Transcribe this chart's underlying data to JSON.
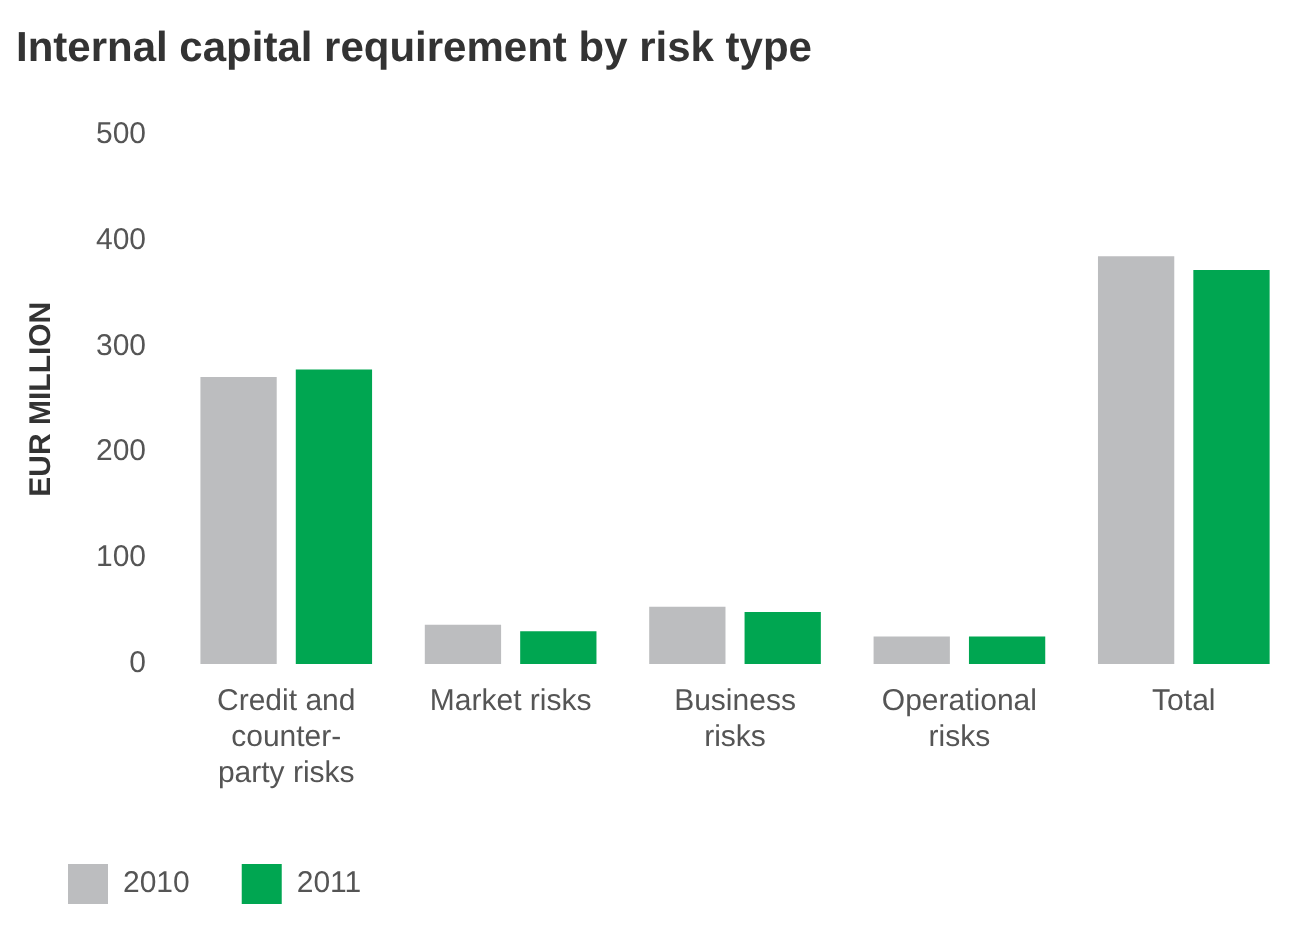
{
  "chart_data": {
    "type": "bar",
    "title": "Internal capital requirement by risk type",
    "ylabel": "EUR MILLION",
    "categories": [
      "Credit and counter-party risks",
      "Market risks",
      "Business risks",
      "Operational risks",
      "Total"
    ],
    "series": [
      {
        "name": "2010",
        "color": "#bcbdbf",
        "values": [
          271,
          37,
          54,
          26,
          385
        ]
      },
      {
        "name": "2011",
        "color": "#00a651",
        "values": [
          278,
          31,
          49,
          26,
          372
        ]
      }
    ],
    "ylim": [
      0,
      500
    ],
    "yticks": [
      0,
      100,
      200,
      300,
      400,
      500
    ],
    "grid": false,
    "legend": "bottom left"
  }
}
